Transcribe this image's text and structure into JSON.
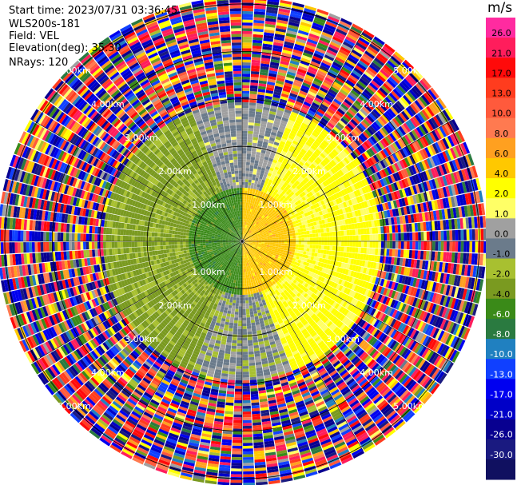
{
  "header": {
    "start_time": "Start time: 2023/07/31 03:36:45",
    "site": "WLS200s-181",
    "field": "Field: VEL",
    "elevation": "Elevation(deg): 35.30",
    "nrays": "NRays: 120"
  },
  "colorbar": {
    "unit": "m/s",
    "ticks": [
      "26.0",
      "21.0",
      "17.0",
      "13.0",
      "10.0",
      "8.0",
      "6.0",
      "4.0",
      "2.0",
      "1.0",
      "0.0",
      "-1.0",
      "-2.0",
      "-4.0",
      "-6.0",
      "-8.0",
      "-10.0",
      "-13.0",
      "-17.0",
      "-21.0",
      "-26.0",
      "-30.0"
    ],
    "colors": [
      "#ff2ba0",
      "#ff1d5c",
      "#ff0a0a",
      "#ff3c1e",
      "#ff5a3c",
      "#ff7a50",
      "#ffa020",
      "#ffc800",
      "#ffff00",
      "#ffff66",
      "#a0a0a0",
      "#6b7b8b",
      "#a8c030",
      "#7a9a20",
      "#3a8a18",
      "#2a7a40",
      "#2080c0",
      "#1040ff",
      "#0000f0",
      "#0000c8",
      "#080090",
      "#1a1a80",
      "#101060"
    ]
  },
  "chart_data": {
    "type": "polar-ppi",
    "nrays": 120,
    "range_rings_km": [
      1.0,
      2.0,
      3.0,
      4.0,
      5.0
    ],
    "ring_labels": [
      "1.00km",
      "2.00km",
      "3.00km",
      "4.00km",
      "5.00km"
    ],
    "max_range_km": 5.1,
    "value_range": [
      -30.0,
      26.0
    ],
    "sectors": [
      {
        "from_deg": 0,
        "to_deg": 180,
        "inner_km": 0.0,
        "outer_km": 1.1,
        "value": 5.0
      },
      {
        "from_deg": 20,
        "to_deg": 160,
        "inner_km": 1.1,
        "outer_km": 2.9,
        "value": 2.5
      },
      {
        "from_deg": 180,
        "to_deg": 360,
        "inner_km": 0.0,
        "outer_km": 1.1,
        "value": -5.0
      },
      {
        "from_deg": 200,
        "to_deg": 340,
        "inner_km": 1.1,
        "outer_km": 2.9,
        "value": -2.5
      },
      {
        "from_deg": 340,
        "to_deg": 20,
        "inner_km": 0.0,
        "outer_km": 2.9,
        "value": 0.0
      },
      {
        "from_deg": 160,
        "to_deg": 200,
        "inner_km": 0.0,
        "outer_km": 2.9,
        "value": -0.5
      }
    ],
    "noise_from_km": 2.9
  }
}
